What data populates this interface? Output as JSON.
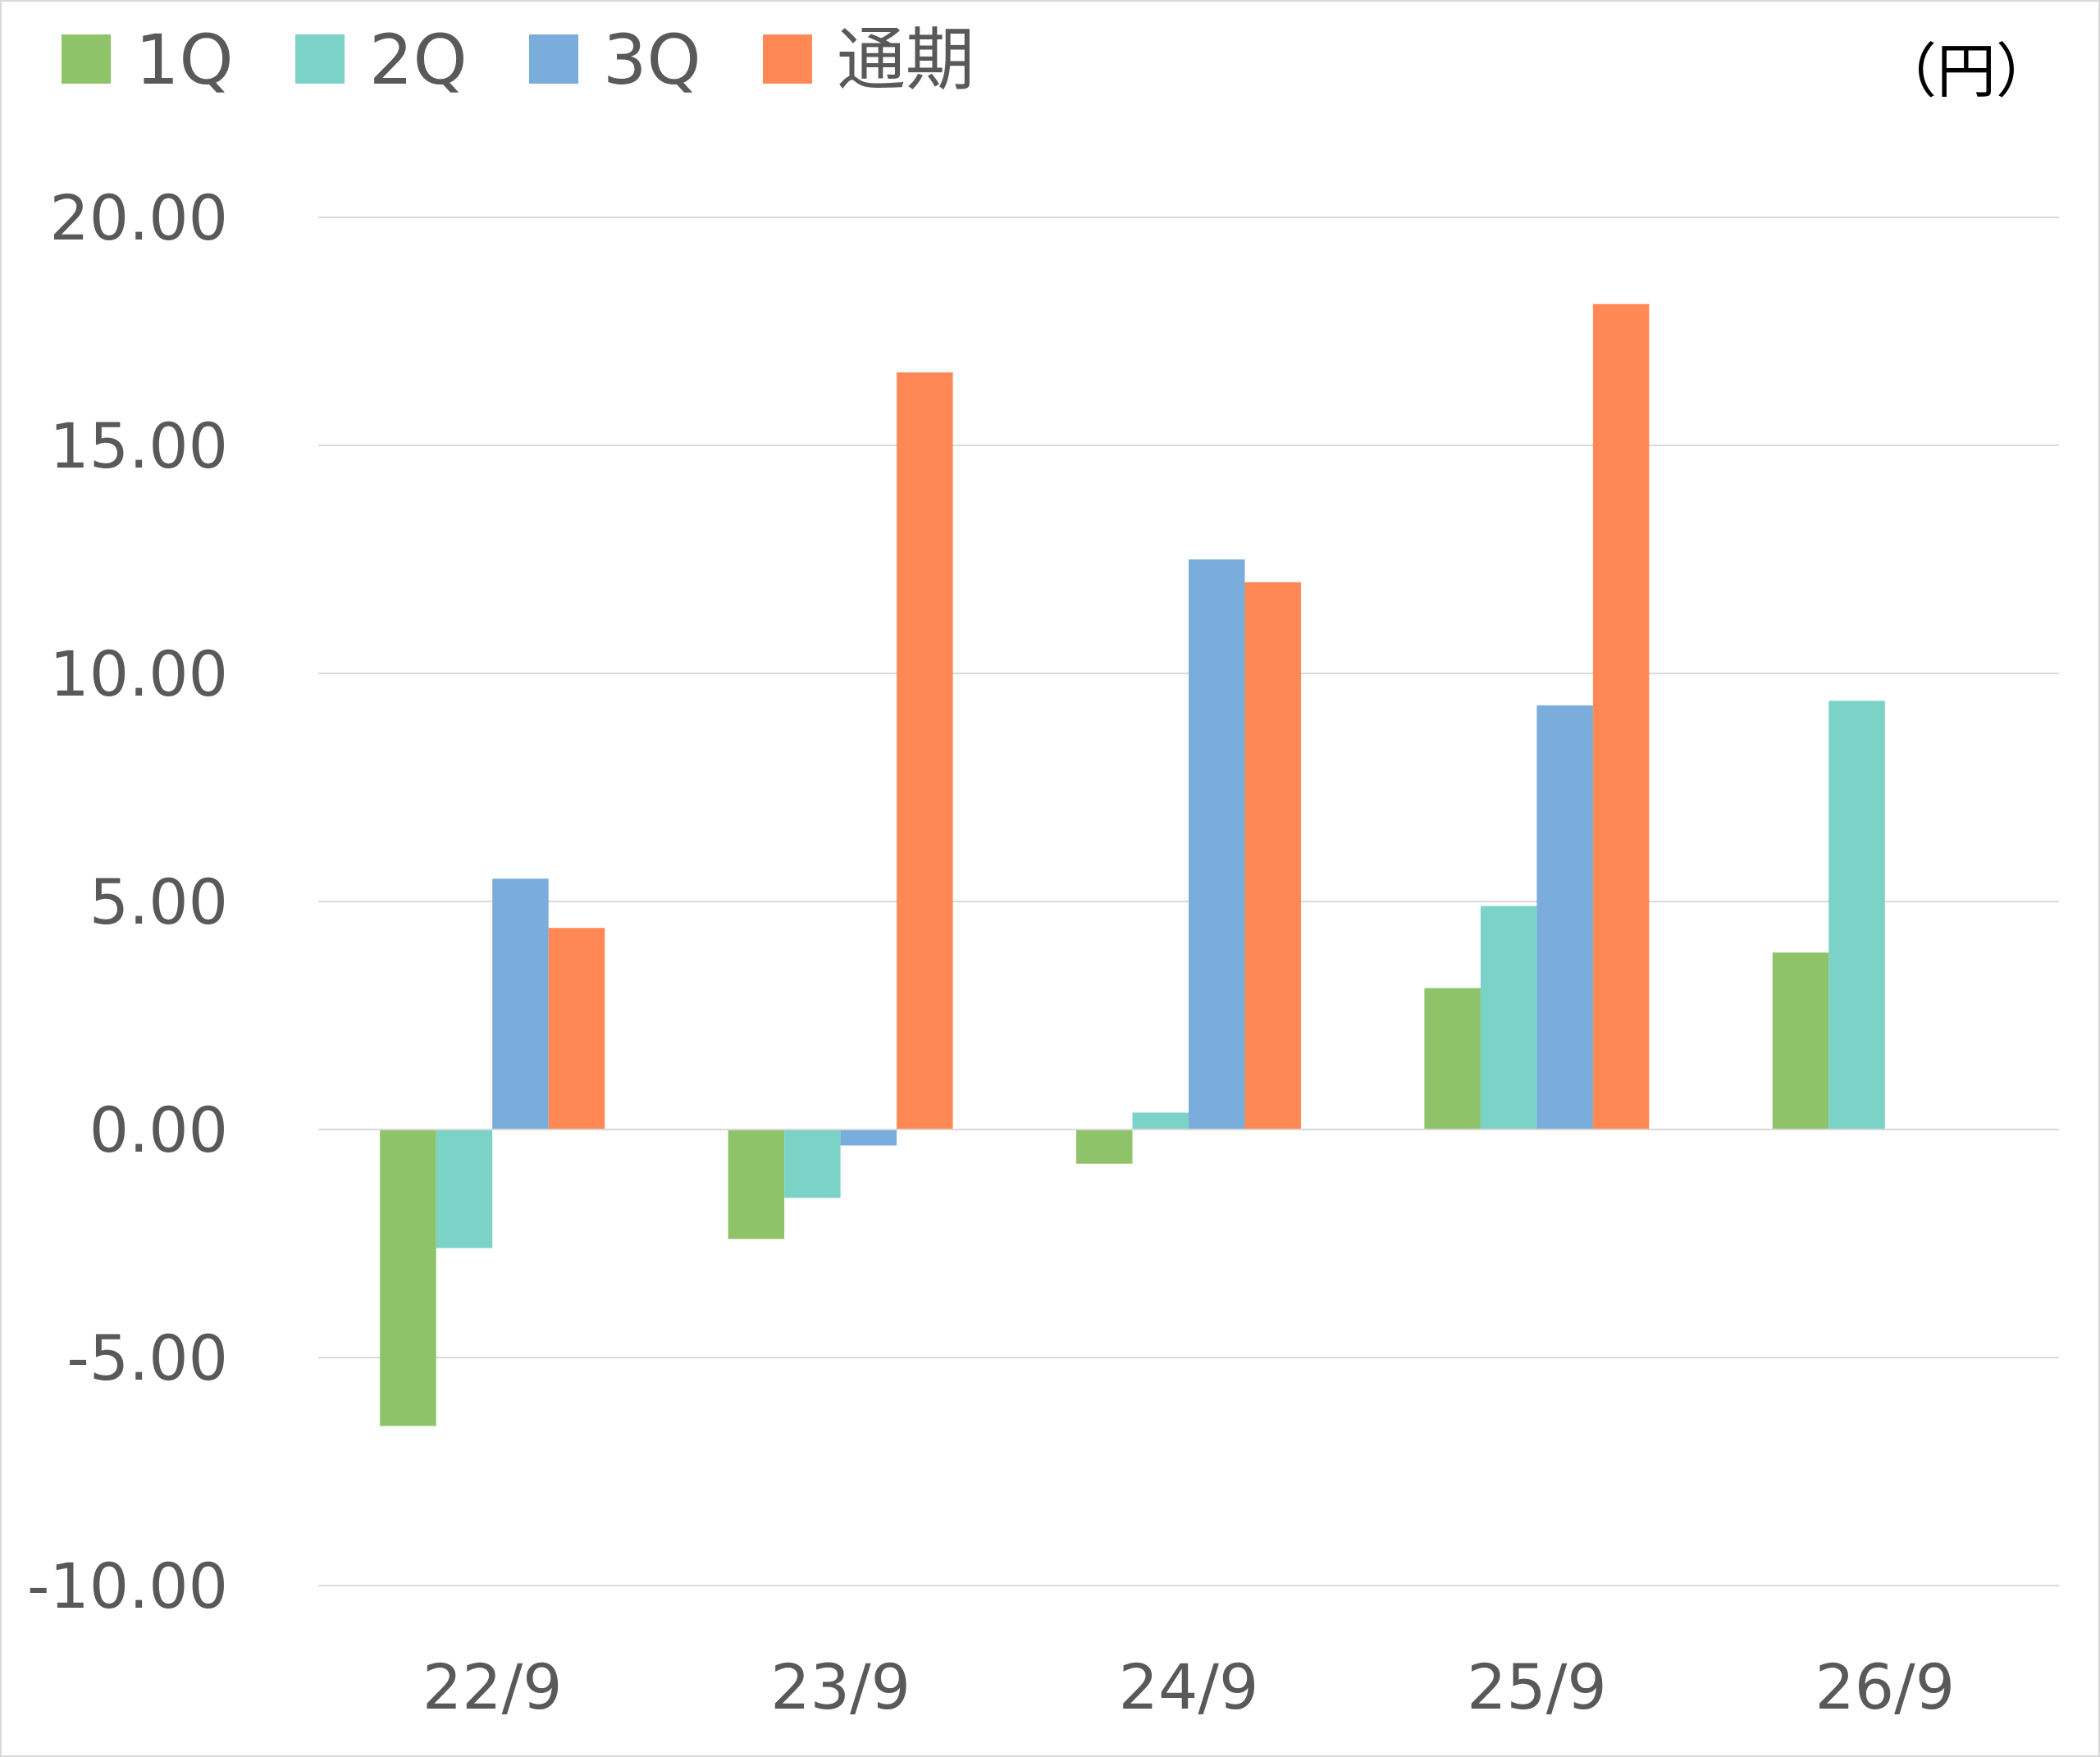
{
  "chart_data": {
    "type": "bar",
    "unit_label": "（円）",
    "categories": [
      "22/9",
      "23/9",
      "24/9",
      "25/9",
      "26/9"
    ],
    "series": [
      {
        "name": "1Q",
        "color": "#8fc36a",
        "values": [
          -6.5,
          -2.4,
          -0.75,
          3.1,
          3.88
        ]
      },
      {
        "name": "2Q",
        "color": "#7bd3c8",
        "values": [
          -2.6,
          -1.5,
          0.37,
          4.9,
          9.4
        ]
      },
      {
        "name": "3Q",
        "color": "#7aaddc",
        "values": [
          5.5,
          -0.35,
          12.5,
          9.3,
          null
        ]
      },
      {
        "name": "通期",
        "color": "#ff8855",
        "values": [
          4.42,
          16.6,
          12.0,
          18.1,
          null
        ]
      }
    ],
    "ylim": [
      -10,
      20
    ],
    "yticks": [
      "20.00",
      "15.00",
      "10.00",
      "5.00",
      "0.00",
      "-5.00",
      "-10.00"
    ],
    "ytick_values": [
      20,
      15,
      10,
      5,
      0,
      -5,
      -10
    ],
    "grid": true,
    "legend": "top-left"
  }
}
